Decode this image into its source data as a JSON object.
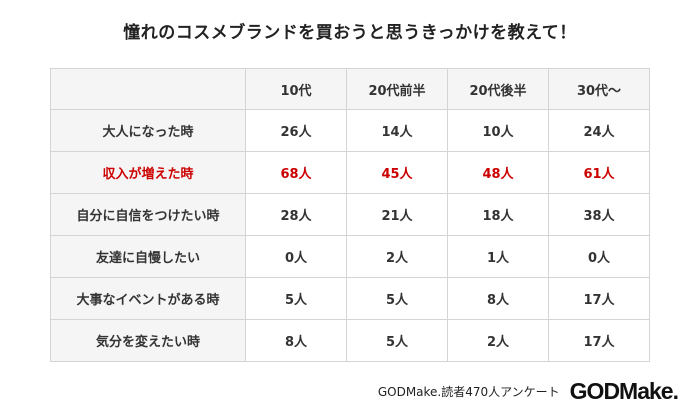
{
  "title": "憧れのコスメブランドを買おうと思うきっかけを教えて！",
  "table": {
    "columns": [
      "",
      "10代",
      "20代前半",
      "20代後半",
      "30代～"
    ],
    "rows": [
      {
        "label": "大人になった時",
        "values": [
          "26人",
          "14人",
          "10人",
          "24人"
        ],
        "highlight": false
      },
      {
        "label": "収入が増えた時",
        "values": [
          "68人",
          "45人",
          "48人",
          "61人"
        ],
        "highlight": true
      },
      {
        "label": "自分に自信をつけたい時",
        "values": [
          "28人",
          "21人",
          "18人",
          "38人"
        ],
        "highlight": false
      },
      {
        "label": "友達に自慢したい",
        "values": [
          "0人",
          "2人",
          "1人",
          "0人"
        ],
        "highlight": false
      },
      {
        "label": "大事なイベントがある時",
        "values": [
          "5人",
          "5人",
          "8人",
          "17人"
        ],
        "highlight": false
      },
      {
        "label": "気分を変えたい時",
        "values": [
          "8人",
          "5人",
          "2人",
          "17人"
        ],
        "highlight": false
      }
    ]
  },
  "footer": {
    "source": "GODMake.読者470人アンケート",
    "logo": "GODMake."
  },
  "colors": {
    "highlight": "#cc0000",
    "header_bg": "#f5f5f5",
    "border": "#d4d4d4"
  }
}
